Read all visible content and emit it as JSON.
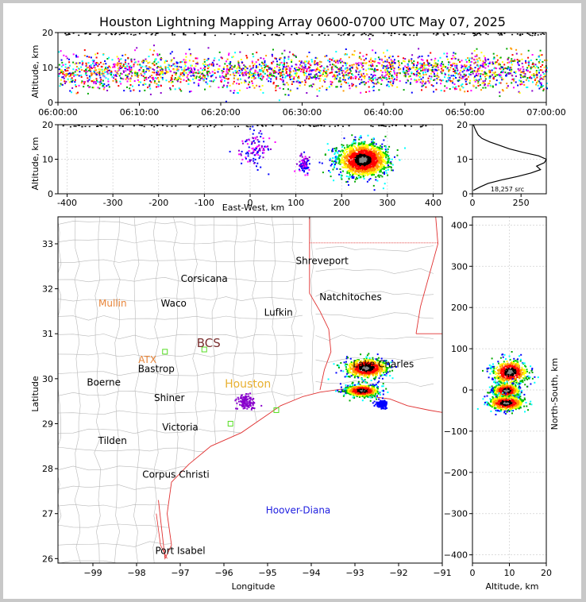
{
  "title": "Houston Lightning Mapping Array 0600-0700 UTC May 07, 2025",
  "colors": {
    "frame": "#c8c8c8",
    "coast": "#e03030",
    "county": "#b8b8b8",
    "grid": "#d0d0d0"
  },
  "chart_data": [
    {
      "id": "time_altitude",
      "type": "scatter",
      "xlabel": "",
      "ylabel": "Altitude, km",
      "x_ticks": [
        "06:00:00",
        "06:10:00",
        "06:20:00",
        "06:30:00",
        "06:40:00",
        "06:50:00",
        "07:00:00"
      ],
      "x_range_minutes": [
        0,
        60
      ],
      "ylim": [
        0,
        20
      ],
      "y_ticks": [
        0,
        10,
        20
      ],
      "altitude_band_km": [
        2,
        16
      ],
      "altitude_peak_km": 9
    },
    {
      "id": "eastwest_altitude",
      "type": "scatter",
      "xlabel": "East-West, km",
      "ylabel": "Altitude, km",
      "xlim": [
        -420,
        420
      ],
      "x_ticks": [
        -400,
        -300,
        -200,
        -100,
        0,
        100,
        200,
        300,
        400
      ],
      "ylim": [
        0,
        20
      ],
      "y_ticks": [
        0,
        10,
        20
      ],
      "clusters": [
        {
          "x_center": 245,
          "x_spread": 45,
          "alt_center": 10,
          "alt_spread": 4,
          "density": "high"
        },
        {
          "x_center": 10,
          "x_spread": 30,
          "alt_center": 13,
          "alt_spread": 4,
          "density": "low"
        },
        {
          "x_center": 115,
          "x_spread": 10,
          "alt_center": 9,
          "alt_spread": 2,
          "density": "medium"
        }
      ]
    },
    {
      "id": "altitude_histogram",
      "type": "line",
      "xlabel": "",
      "ylabel": "",
      "xlim": [
        0,
        380
      ],
      "x_ticks": [
        0,
        250
      ],
      "ylim": [
        0,
        20
      ],
      "y_ticks": [
        0,
        10,
        20
      ],
      "annotation": "18,257 src",
      "points": [
        [
          5,
          1
        ],
        [
          40,
          2
        ],
        [
          80,
          3
        ],
        [
          150,
          4
        ],
        [
          230,
          5
        ],
        [
          300,
          6
        ],
        [
          350,
          7
        ],
        [
          330,
          8
        ],
        [
          370,
          9
        ],
        [
          380,
          10
        ],
        [
          340,
          11
        ],
        [
          260,
          12
        ],
        [
          190,
          13
        ],
        [
          140,
          14
        ],
        [
          90,
          15
        ],
        [
          50,
          16
        ],
        [
          30,
          17
        ],
        [
          20,
          18
        ],
        [
          12,
          19
        ],
        [
          5,
          20
        ]
      ]
    },
    {
      "id": "plan_view",
      "type": "scatter",
      "xlabel": "Longitude",
      "ylabel": "Latitude",
      "xlim": [
        -99.8,
        -91
      ],
      "ylim": [
        25.9,
        33.6
      ],
      "x_ticks": [
        -99,
        -98,
        -97,
        -96,
        -95,
        -94,
        -93,
        -92,
        -91
      ],
      "y_ticks": [
        26,
        27,
        28,
        29,
        30,
        31,
        32,
        33
      ],
      "storm_clusters": [
        {
          "lon": -92.75,
          "lat": 30.25,
          "spread_lon": 0.45,
          "spread_lat": 0.2
        },
        {
          "lon": -92.85,
          "lat": 29.75,
          "spread_lon": 0.35,
          "spread_lat": 0.12
        },
        {
          "lon": -92.4,
          "lat": 29.45,
          "spread_lon": 0.12,
          "spread_lat": 0.08
        },
        {
          "lon": -95.5,
          "lat": 29.5,
          "spread_lon": 0.2,
          "spread_lat": 0.15
        }
      ],
      "cities": [
        {
          "name": "Shreveport",
          "lon": -93.75,
          "lat": 32.55,
          "color": "#000000"
        },
        {
          "name": "Corsicana",
          "lon": -96.45,
          "lat": 32.15,
          "color": "#000000"
        },
        {
          "name": "Mullin",
          "lon": -98.55,
          "lat": 31.6,
          "color": "#e8853a"
        },
        {
          "name": "Waco",
          "lon": -97.15,
          "lat": 31.6,
          "color": "#000000"
        },
        {
          "name": "Natchitoches",
          "lon": -93.1,
          "lat": 31.75,
          "color": "#000000"
        },
        {
          "name": "Lufkin",
          "lon": -94.75,
          "lat": 31.4,
          "color": "#000000"
        },
        {
          "name": "BCS",
          "lon": -96.35,
          "lat": 30.7,
          "color": "#7a3030"
        },
        {
          "name": "ATX",
          "lon": -97.75,
          "lat": 30.35,
          "color": "#e8853a"
        },
        {
          "name": "Bastrop",
          "lon": -97.55,
          "lat": 30.15,
          "color": "#000000"
        },
        {
          "name": "Boerne",
          "lon": -98.75,
          "lat": 29.85,
          "color": "#000000"
        },
        {
          "name": "Houston",
          "lon": -95.45,
          "lat": 29.8,
          "color": "#e8b030"
        },
        {
          "name": "Lake Charles",
          "lon": -92.35,
          "lat": 30.25,
          "color": "#000000"
        },
        {
          "name": "Shiner",
          "lon": -97.25,
          "lat": 29.5,
          "color": "#000000"
        },
        {
          "name": "Victoria",
          "lon": -97.0,
          "lat": 28.85,
          "color": "#000000"
        },
        {
          "name": "Tilden",
          "lon": -98.55,
          "lat": 28.55,
          "color": "#000000"
        },
        {
          "name": "Corpus Christi",
          "lon": -97.1,
          "lat": 27.8,
          "color": "#000000"
        },
        {
          "name": "Hoover-Diana",
          "lon": -94.3,
          "lat": 27.0,
          "color": "#2020e0"
        },
        {
          "name": "Port Isabel",
          "lon": -97.0,
          "lat": 26.1,
          "color": "#000000"
        }
      ]
    },
    {
      "id": "northsouth_altitude",
      "type": "scatter",
      "xlabel": "Altitude, km",
      "ylabel": "North-South, km",
      "xlim": [
        0,
        20
      ],
      "x_ticks": [
        0,
        10,
        20
      ],
      "ylim": [
        -420,
        420
      ],
      "y_ticks": [
        -400,
        -300,
        -200,
        -100,
        0,
        100,
        200,
        300,
        400
      ],
      "clusters": [
        {
          "ns_center": 45,
          "ns_spread": 25,
          "alt_center": 10,
          "alt_spread": 4
        },
        {
          "ns_center": 0,
          "ns_spread": 15,
          "alt_center": 9,
          "alt_spread": 3
        },
        {
          "ns_center": -30,
          "ns_spread": 15,
          "alt_center": 9,
          "alt_spread": 4
        }
      ]
    }
  ]
}
